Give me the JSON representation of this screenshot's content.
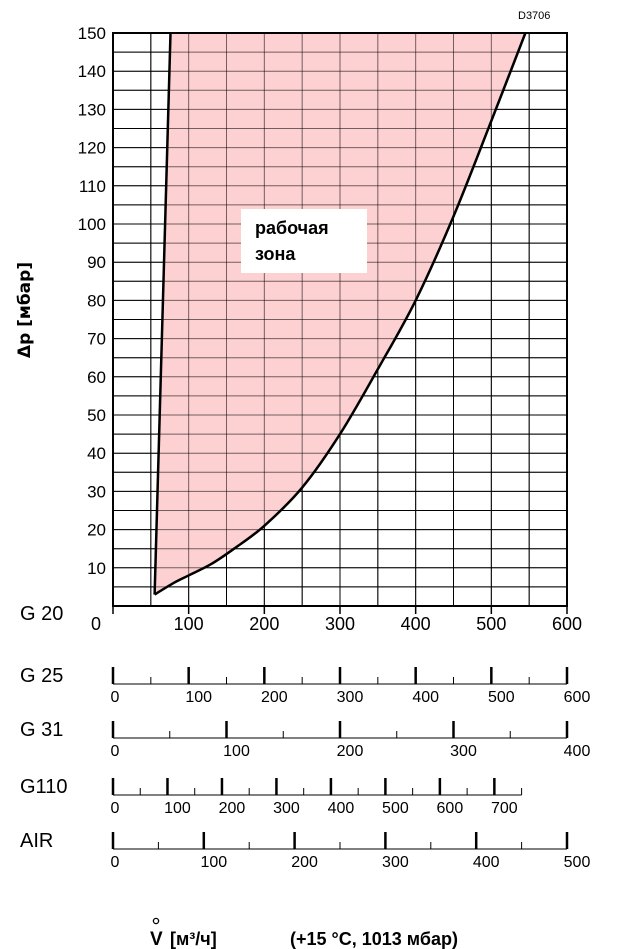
{
  "chart_data": {
    "type": "area",
    "code": "D3706",
    "ylabel": "Δp [мбар]",
    "zone_label_line1": "рабочая",
    "zone_label_line2": "зона",
    "footer_flow": "V",
    "footer_unit": "[м³/ч]",
    "footer_conditions": "(+15 °C, 1013 мбар)",
    "xlim": [
      0,
      600
    ],
    "ylim": [
      0,
      150
    ],
    "grid": true,
    "y_ticks": [
      10,
      20,
      30,
      40,
      50,
      60,
      70,
      80,
      90,
      100,
      110,
      120,
      130,
      140,
      150
    ],
    "zone_color": "#fdd0d2",
    "boundary_left": {
      "x": [
        55,
        76
      ],
      "y": [
        3,
        150
      ]
    },
    "boundary_right": {
      "x": [
        55,
        80,
        100,
        130,
        160,
        200,
        250,
        300,
        350,
        400,
        450,
        500,
        545
      ],
      "y": [
        3,
        6,
        8,
        11,
        15,
        21,
        31,
        45,
        62,
        80,
        102,
        127,
        150
      ]
    },
    "gas_scales": [
      {
        "name": "G 20",
        "max": 600,
        "labels": [
          0,
          100,
          200,
          300,
          400,
          500,
          600
        ],
        "minor": []
      },
      {
        "name": "G 25",
        "max": 600,
        "labels": [
          0,
          100,
          200,
          300,
          400,
          500,
          600
        ],
        "minor": [
          50,
          150,
          250,
          350,
          450,
          550
        ]
      },
      {
        "name": "G 31",
        "max": 400,
        "labels": [
          0,
          100,
          200,
          300,
          400
        ],
        "minor": [
          50,
          150,
          250,
          350
        ]
      },
      {
        "name": "G110",
        "max": 750,
        "labels": [
          0,
          100,
          200,
          300,
          400,
          500,
          600,
          700
        ],
        "minor": [
          50,
          150,
          250,
          350,
          450,
          550,
          650,
          750
        ]
      },
      {
        "name": "AIR",
        "max": 500,
        "labels": [
          0,
          100,
          200,
          300,
          400,
          500
        ],
        "minor": [
          50,
          150,
          250,
          350,
          450
        ]
      }
    ]
  }
}
